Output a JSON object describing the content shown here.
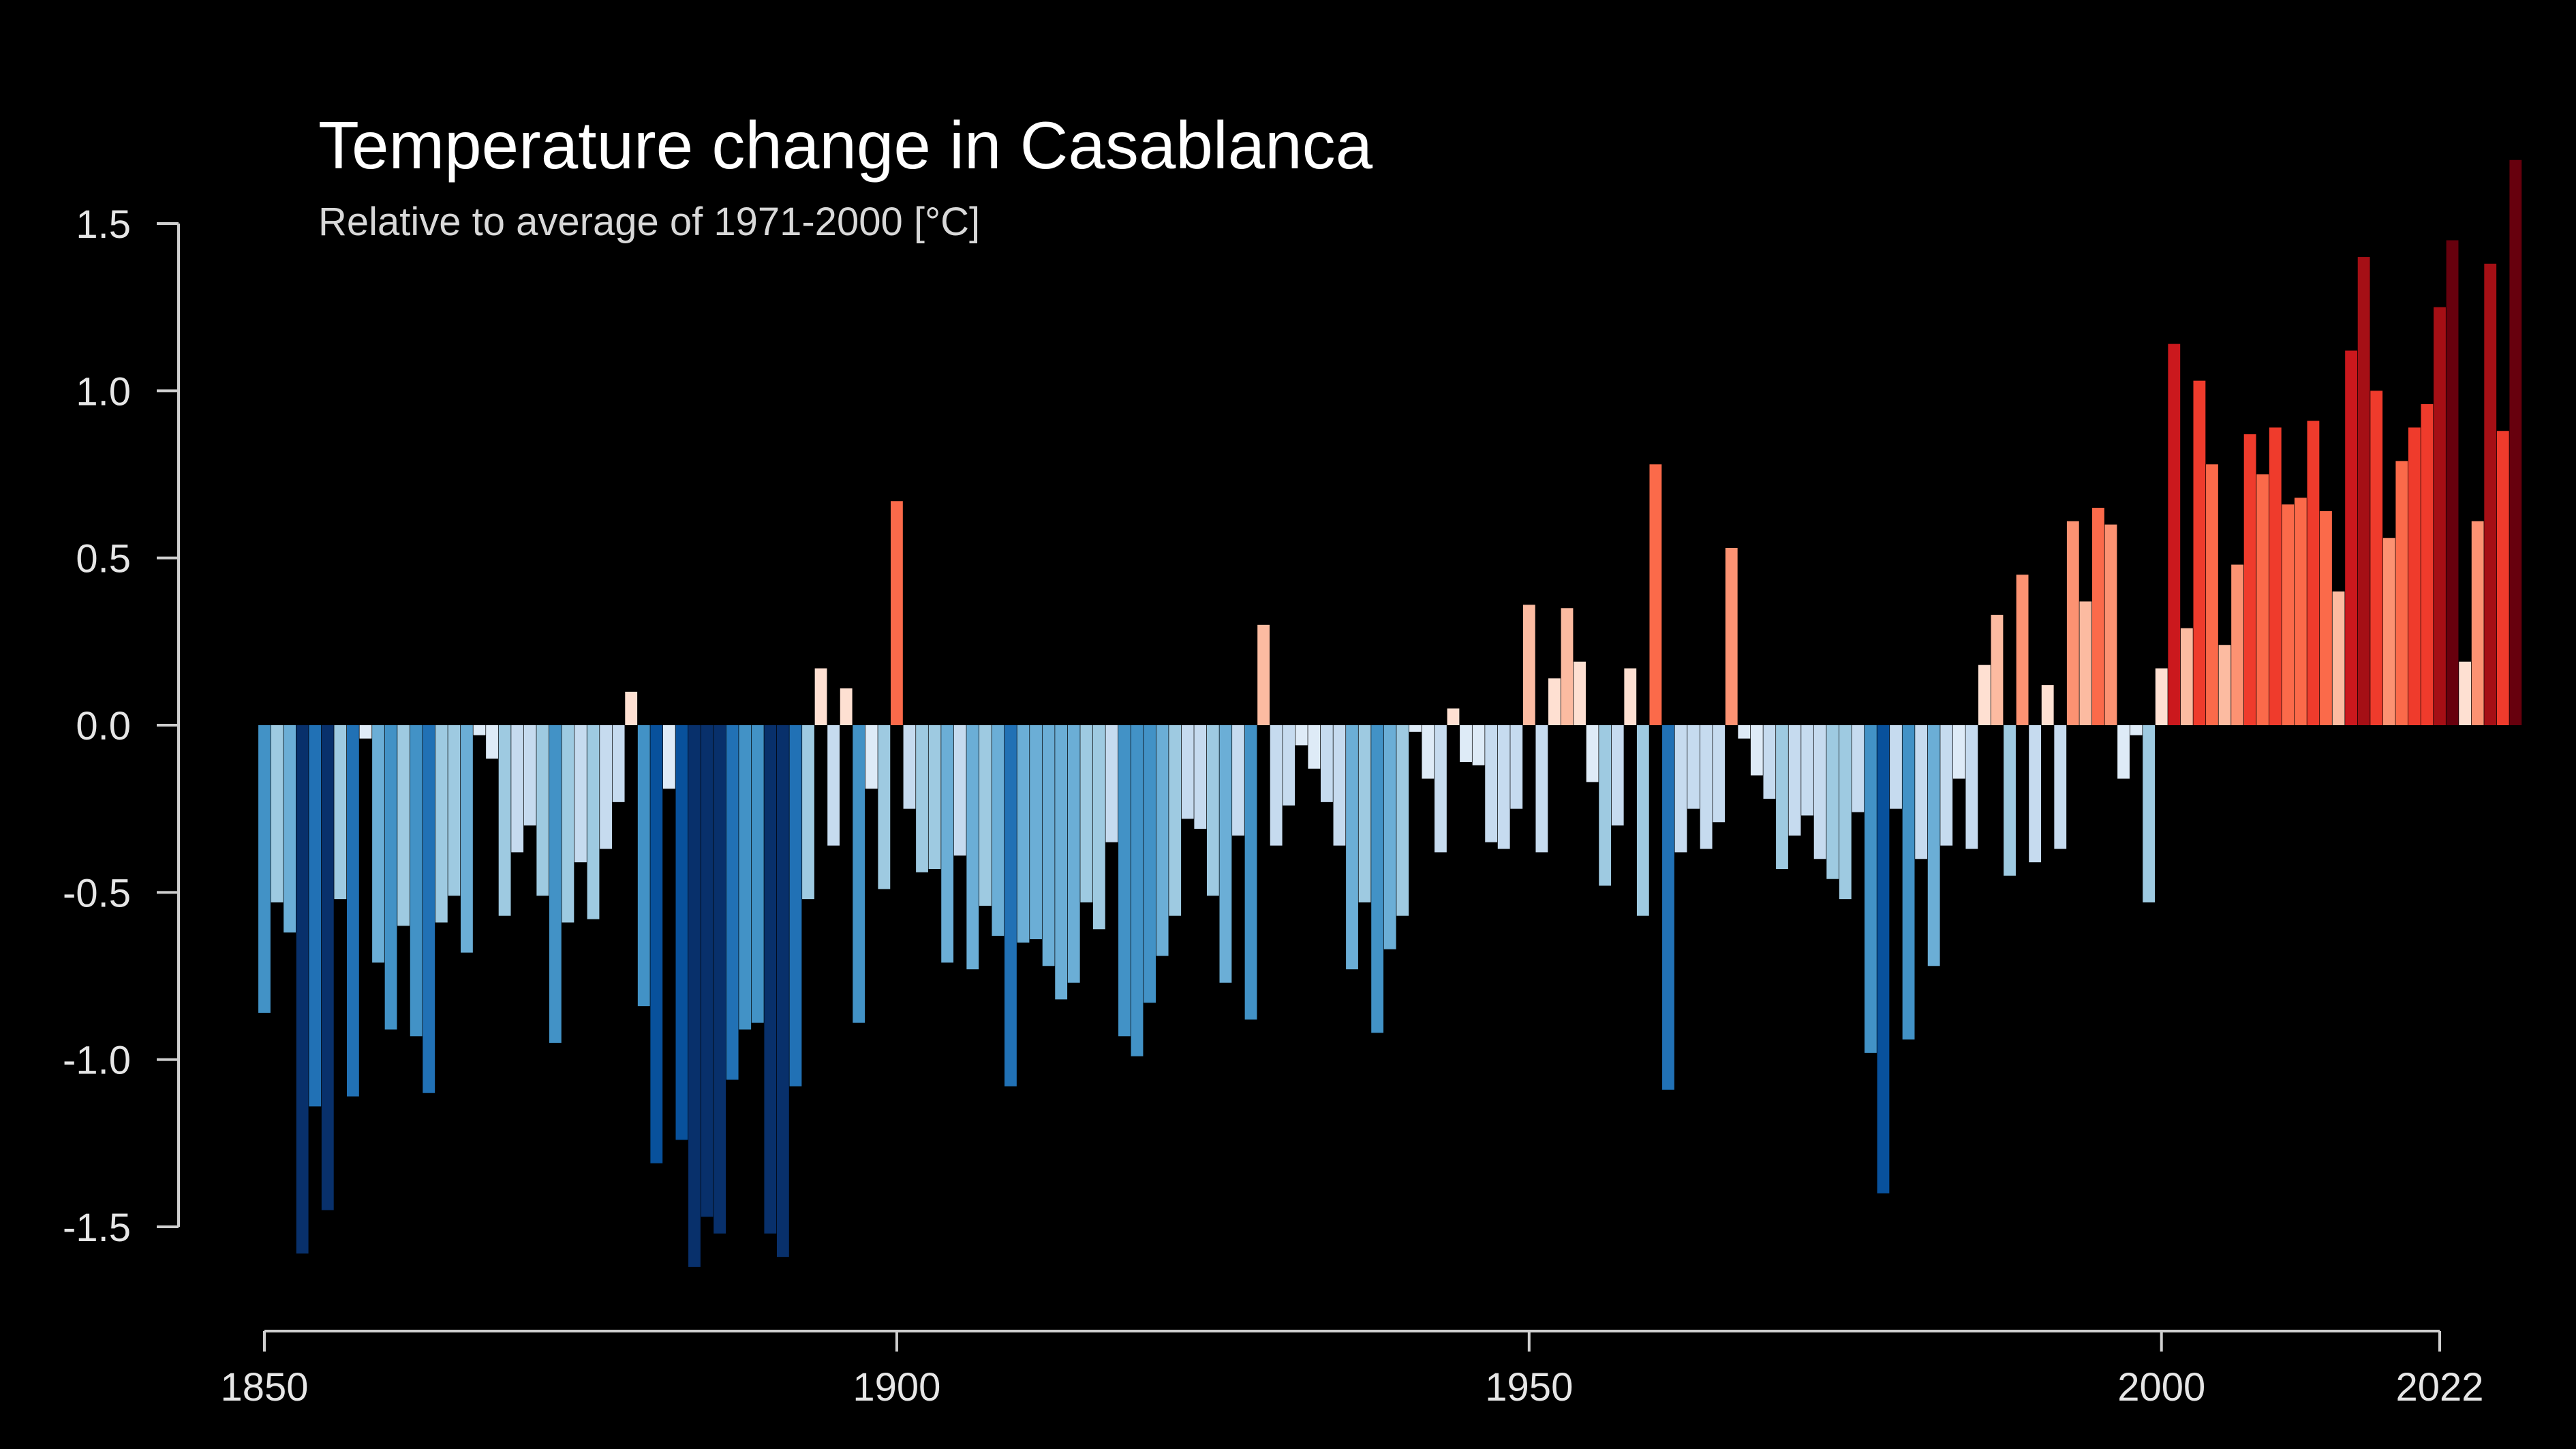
{
  "chart_data": {
    "type": "bar",
    "title": "Temperature change in Casablanca",
    "subtitle": "Relative to average of 1971-2000  [°C]",
    "xlabel": "",
    "ylabel": "",
    "xlim": [
      1850,
      2022
    ],
    "ylim": [
      -1.5,
      1.5
    ],
    "x_ticks": [
      1850,
      1900,
      1950,
      2000,
      2022
    ],
    "y_ticks": [
      1.5,
      1.0,
      0.5,
      0.0,
      -0.5,
      -1.0,
      -1.5
    ],
    "y_tick_labels": [
      "1.5",
      "1.0",
      "0.5",
      "0.0",
      "-0.5",
      "-1.0",
      "-1.5"
    ],
    "grid": false,
    "legend": "none",
    "colors": {
      "background": "#000000",
      "axis": "#cfcfcf",
      "scale": [
        "#08306b",
        "#08519c",
        "#2171b5",
        "#4292c6",
        "#6baed6",
        "#9ecae1",
        "#c6dbef",
        "#deebf7",
        "#fee0d2",
        "#fcbba1",
        "#fc9272",
        "#fb6a4a",
        "#ef3b2c",
        "#cb181d",
        "#a50f15",
        "#67000d"
      ]
    },
    "start_year": 1850,
    "values": [
      -0.86,
      -0.53,
      -0.62,
      -1.58,
      -1.14,
      -1.45,
      -0.52,
      -1.11,
      -0.04,
      -0.71,
      -0.91,
      -0.6,
      -0.93,
      -1.1,
      -0.59,
      -0.51,
      -0.68,
      -0.03,
      -0.1,
      -0.57,
      -0.38,
      -0.3,
      -0.51,
      -0.95,
      -0.59,
      -0.41,
      -0.58,
      -0.37,
      -0.23,
      0.1,
      -0.84,
      -1.31,
      -0.19,
      -1.24,
      -1.62,
      -1.47,
      -1.52,
      -1.06,
      -0.91,
      -0.89,
      -1.52,
      -1.59,
      -1.08,
      -0.52,
      0.17,
      -0.36,
      0.11,
      -0.89,
      -0.19,
      -0.49,
      0.67,
      -0.25,
      -0.44,
      -0.43,
      -0.71,
      -0.39,
      -0.73,
      -0.54,
      -0.63,
      -1.08,
      -0.65,
      -0.64,
      -0.72,
      -0.82,
      -0.77,
      -0.53,
      -0.61,
      -0.35,
      -0.93,
      -0.99,
      -0.83,
      -0.69,
      -0.57,
      -0.28,
      -0.31,
      -0.51,
      -0.77,
      -0.33,
      -0.88,
      0.3,
      -0.36,
      -0.24,
      -0.06,
      -0.13,
      -0.23,
      -0.36,
      -0.73,
      -0.53,
      -0.92,
      -0.67,
      -0.57,
      -0.02,
      -0.16,
      -0.38,
      0.05,
      -0.11,
      -0.12,
      -0.35,
      -0.37,
      -0.25,
      0.36,
      -0.38,
      0.14,
      0.35,
      0.19,
      -0.17,
      -0.48,
      -0.3,
      0.17,
      -0.57,
      0.78,
      -1.09,
      -0.38,
      -0.25,
      -0.37,
      -0.29,
      0.53,
      -0.04,
      -0.15,
      -0.22,
      -0.43,
      -0.33,
      -0.27,
      -0.4,
      -0.46,
      -0.52,
      -0.26,
      -0.98,
      -1.4,
      -0.25,
      -0.94,
      -0.4,
      -0.72,
      -0.36,
      -0.16,
      -0.37,
      0.18,
      0.33,
      -0.45,
      0.45,
      -0.41,
      0.12,
      -0.37,
      0.61,
      0.37,
      0.65,
      0.6,
      -0.16,
      -0.03,
      -0.53,
      0.17,
      1.14,
      0.29,
      1.03,
      0.78,
      0.24,
      0.48,
      0.87,
      0.75,
      0.89,
      0.66,
      0.68,
      0.91,
      0.64,
      0.4,
      1.12,
      1.4,
      1.0,
      0.56,
      0.79,
      0.89,
      0.96,
      1.25,
      1.45,
      0.19,
      0.61,
      1.38,
      0.88,
      1.69
    ]
  }
}
